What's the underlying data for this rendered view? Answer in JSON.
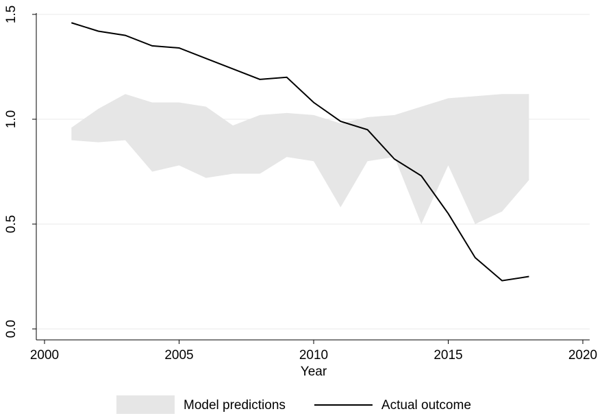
{
  "chart_data": {
    "type": "line",
    "x_label": "Year",
    "x": [
      2001,
      2002,
      2003,
      2004,
      2005,
      2006,
      2007,
      2008,
      2009,
      2010,
      2011,
      2012,
      2013,
      2014,
      2015,
      2016,
      2017,
      2018
    ],
    "series": [
      {
        "name": "Model predictions",
        "type": "range",
        "color": "#e6e6e6",
        "upper": [
          0.96,
          1.05,
          1.12,
          1.08,
          1.08,
          1.06,
          0.97,
          1.02,
          1.03,
          1.02,
          0.98,
          1.01,
          1.02,
          1.06,
          1.1,
          1.11,
          1.12,
          1.12
        ],
        "lower": [
          0.9,
          0.89,
          0.9,
          0.75,
          0.78,
          0.72,
          0.74,
          0.74,
          0.82,
          0.8,
          0.58,
          0.8,
          0.82,
          0.5,
          0.78,
          0.5,
          0.56,
          0.71
        ]
      },
      {
        "name": "Actual outcome",
        "type": "line",
        "color": "#000000",
        "values": [
          1.46,
          1.42,
          1.4,
          1.35,
          1.34,
          1.29,
          1.24,
          1.19,
          1.2,
          1.08,
          0.99,
          0.95,
          0.81,
          0.73,
          0.55,
          0.34,
          0.23,
          0.25
        ]
      }
    ],
    "xlim": [
      2000,
      2020
    ],
    "xticks": [
      2000,
      2005,
      2010,
      2015,
      2020
    ],
    "ylim": [
      0,
      1.5
    ],
    "yticks": [
      {
        "value": 0,
        "label": "0.0"
      },
      0.5,
      {
        "value": 1,
        "label": "1.0"
      },
      1.5
    ],
    "grid": true,
    "legend": "bottom"
  }
}
